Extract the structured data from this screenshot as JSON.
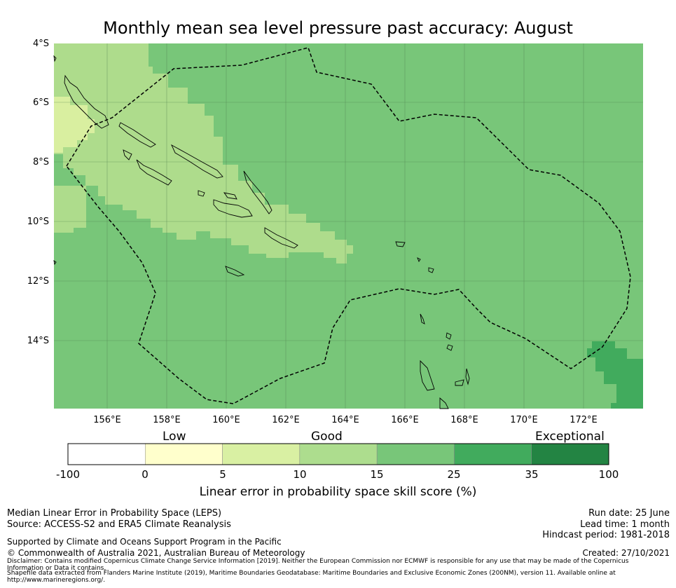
{
  "title": "Monthly mean sea level pressure past accuracy: August",
  "map": {
    "lat_labels": [
      "4°S",
      "6°S",
      "8°S",
      "10°S",
      "12°S",
      "14°S"
    ],
    "lon_labels": [
      "156°E",
      "158°E",
      "160°E",
      "162°E",
      "164°E",
      "166°E",
      "168°E",
      "170°E",
      "172°E"
    ],
    "field_colors": {
      "yellow_green": "#d9efa0",
      "light_green": "#aedc8c",
      "mid_green": "#78c679",
      "dark_green": "#41ab5d"
    }
  },
  "colorbar": {
    "category_labels": [
      "Low",
      "Good",
      "Exceptional"
    ],
    "ticks": [
      "-100",
      "0",
      "5",
      "10",
      "15",
      "25",
      "35",
      "100"
    ],
    "colors": [
      "#ffffff",
      "#ffffcc",
      "#d9f0a3",
      "#addd8e",
      "#78c679",
      "#41ab5d",
      "#238443"
    ],
    "title": "Linear error in probability space skill score (%)"
  },
  "footer": {
    "line1": "Median Linear Error in Probability Space (LEPS)",
    "line2": "Source: ACCESS-S2 and ERA5 Climate Reanalysis",
    "line3": "Supported by Climate and Oceans Support Program in the Pacific",
    "line4": "© Commonwealth of Australia 2021, Australian Bureau of Meteorology",
    "disclaimer1": "Disclaimer: Contains modified Copernicus Climate Change Service Information [2019]. Neither the European Commission nor ECMWF is responsible for any use that may be made of the Copernicus Information or Data it contains.",
    "disclaimer2": "Shapefile data extracted from Flanders Marine Institute (2019), Maritime Boundaries Geodatabase: Maritime Boundaries and Exclusive Economic Zones (200NM), version 11. Available online at http://www.marineregions.org/.",
    "run_date": "Run date: 25 June",
    "lead_time": "Lead time: 1 month",
    "hindcast": "Hindcast period: 1981-2018",
    "created": "Created: 27/10/2021"
  }
}
